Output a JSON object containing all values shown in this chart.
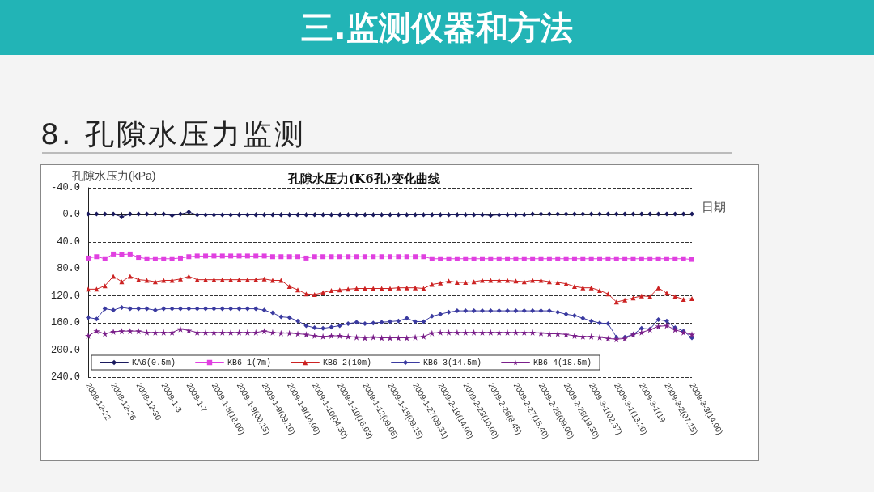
{
  "chart_data": {
    "type": "line",
    "title": "孔隙水压力(K6孔)变化曲线",
    "ylabel": "孔隙水压力(kPa)",
    "xlabel": "日期",
    "annotations": [
      "三.监测仪器和方法",
      "8. 孔隙水压力监测"
    ],
    "categories": [
      "2008-12-22",
      null,
      null,
      "2008-12-26",
      null,
      null,
      "2008-12-30",
      null,
      null,
      "2009-1-3",
      null,
      null,
      "2009-1-7",
      null,
      null,
      "2009-1-8(18:00)",
      null,
      null,
      "2009-1-9(00:15)",
      null,
      null,
      "2009-1-9(09:10)",
      null,
      null,
      "2009-1-9(16:00)",
      null,
      null,
      "2009-1-10(04:30)",
      null,
      null,
      "2009-1-10(16:03)",
      null,
      null,
      "2009-1-12(09:05)",
      null,
      null,
      "2009-1-15(09:15)",
      null,
      null,
      "2009-1-27(09:31)",
      null,
      null,
      "2009-2-19(14:00)",
      null,
      null,
      "2009-2-23(10:00)",
      null,
      null,
      "2009-2-26(8:45)",
      null,
      null,
      "2009-2-27(15:40)",
      null,
      null,
      "2009-2-28(09:00)",
      null,
      null,
      "2009-2-28(19:30)",
      null,
      null,
      "2009-3-1(02:37)",
      null,
      null,
      "2009-3-1(13:20)",
      null,
      null,
      "2009-3-1(19",
      null,
      null,
      "2009-3-2(07:15)",
      null,
      null,
      "2009-3-3(14:00)"
    ],
    "series": [
      {
        "name": "KA6(0.5m)",
        "color": "#1a1a5e",
        "marker": "diamond",
        "values": [
          -1,
          -1,
          -1,
          -1,
          3,
          -1,
          -1,
          -1,
          -1,
          -1,
          1,
          -1,
          -4,
          0,
          0,
          0,
          0,
          0,
          0,
          0,
          0,
          0,
          0,
          0,
          0,
          0,
          0,
          0,
          0,
          0,
          0,
          0,
          0,
          0,
          0,
          0,
          0,
          0,
          0,
          0,
          0,
          0,
          0,
          0,
          0,
          0,
          0,
          0,
          1,
          0,
          0,
          0,
          0,
          -1,
          -1,
          -1,
          -1,
          -1,
          -1,
          -1,
          -1,
          -1,
          -1,
          -1,
          -1,
          -1,
          -1,
          -1,
          -1,
          -1,
          -1,
          -1,
          -1
        ]
      },
      {
        "name": "KB6-1(7m)",
        "color": "#e040e0",
        "marker": "square",
        "values": [
          64,
          62,
          65,
          58,
          59,
          58,
          63,
          65,
          65,
          65,
          65,
          64,
          62,
          61,
          61,
          61,
          61,
          61,
          61,
          61,
          61,
          61,
          62,
          62,
          62,
          62,
          64,
          62,
          62,
          62,
          62,
          62,
          62,
          62,
          62,
          62,
          62,
          62,
          62,
          62,
          62,
          65,
          65,
          65,
          65,
          65,
          65,
          65,
          65,
          65,
          65,
          65,
          65,
          65,
          65,
          65,
          65,
          65,
          65,
          65,
          65,
          65,
          65,
          65,
          65,
          65,
          65,
          65,
          65,
          65,
          65,
          65,
          66
        ]
      },
      {
        "name": "KB6-2(10m)",
        "color": "#cc2222",
        "marker": "triangle",
        "values": [
          110,
          110,
          105,
          91,
          99,
          91,
          96,
          97,
          99,
          97,
          97,
          95,
          91,
          96,
          96,
          96,
          96,
          96,
          96,
          96,
          96,
          95,
          97,
          97,
          106,
          111,
          117,
          118,
          115,
          112,
          111,
          110,
          109,
          109,
          109,
          109,
          109,
          108,
          108,
          108,
          109,
          103,
          101,
          98,
          100,
          100,
          99,
          97,
          97,
          97,
          97,
          98,
          99,
          97,
          97,
          99,
          100,
          102,
          106,
          108,
          108,
          112,
          117,
          129,
          126,
          123,
          120,
          121,
          108,
          116,
          121,
          125,
          124
        ]
      },
      {
        "name": "KB6-3(14.5m)",
        "color": "#3a3aa0",
        "marker": "diamond",
        "values": [
          152,
          154,
          139,
          141,
          137,
          139,
          139,
          139,
          141,
          139,
          139,
          139,
          139,
          139,
          139,
          139,
          139,
          139,
          139,
          139,
          139,
          141,
          145,
          151,
          152,
          157,
          164,
          167,
          168,
          166,
          164,
          161,
          159,
          161,
          160,
          159,
          158,
          157,
          153,
          158,
          158,
          150,
          147,
          144,
          142,
          142,
          142,
          142,
          142,
          142,
          142,
          142,
          142,
          142,
          142,
          142,
          144,
          147,
          149,
          153,
          157,
          160,
          161,
          181,
          181,
          177,
          168,
          169,
          155,
          157,
          167,
          172,
          182
        ]
      },
      {
        "name": "KB6-4(18.5m)",
        "color": "#7a1f8a",
        "marker": "star",
        "values": [
          179,
          172,
          176,
          173,
          172,
          172,
          172,
          174,
          174,
          174,
          174,
          169,
          171,
          174,
          174,
          174,
          174,
          174,
          174,
          174,
          174,
          172,
          174,
          175,
          175,
          176,
          177,
          179,
          180,
          179,
          179,
          180,
          181,
          182,
          181,
          182,
          182,
          182,
          182,
          181,
          180,
          175,
          174,
          174,
          174,
          174,
          174,
          174,
          174,
          174,
          174,
          174,
          174,
          174,
          175,
          176,
          176,
          177,
          179,
          180,
          180,
          181,
          183,
          184,
          183,
          177,
          174,
          170,
          165,
          164,
          170,
          174,
          177
        ]
      }
    ],
    "ylim": [
      240,
      -40
    ],
    "yticks": [
      {
        "value": -40,
        "label": "-40.0"
      },
      {
        "value": 0,
        "label": "0.0"
      },
      {
        "value": 40,
        "label": "40.0"
      },
      {
        "value": 80,
        "label": "80.0"
      },
      {
        "value": 120,
        "label": "120.0"
      },
      {
        "value": 160,
        "label": "160.0"
      },
      {
        "value": 200,
        "label": "200.0"
      },
      {
        "value": 240,
        "label": "240.0"
      }
    ],
    "grid": "y",
    "legend": "bottom",
    "line_style": "solid"
  }
}
